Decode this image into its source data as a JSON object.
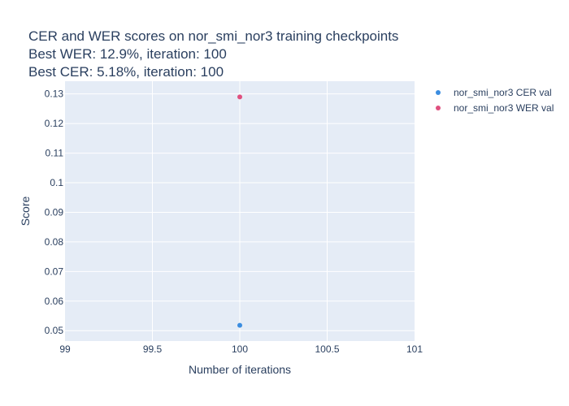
{
  "chart_data": {
    "type": "scatter",
    "title": {
      "lines": [
        "CER and WER scores on nor_smi_nor3 training checkpoints",
        "Best WER: 12.9%,  iteration: 100",
        "Best CER: 5.18%, iteration: 100"
      ]
    },
    "xlabel": "Number of iterations",
    "ylabel": "Score",
    "xlim": [
      99,
      101
    ],
    "ylim": [
      0.0465,
      0.1343
    ],
    "xticks": [
      99,
      99.5,
      100,
      100.5,
      101
    ],
    "xtick_labels": [
      "99",
      "99.5",
      "100",
      "100.5",
      "101"
    ],
    "yticks": [
      0.05,
      0.06,
      0.07,
      0.08,
      0.09,
      0.1,
      0.11,
      0.12,
      0.13
    ],
    "ytick_labels": [
      "0.05",
      "0.06",
      "0.07",
      "0.08",
      "0.09",
      "0.1",
      "0.11",
      "0.12",
      "0.13"
    ],
    "grid": true,
    "legend_position": "top-right",
    "series": [
      {
        "name": "nor_smi_nor3 CER val",
        "color": "#3b8de0",
        "x": [
          100
        ],
        "y": [
          0.0518
        ]
      },
      {
        "name": "nor_smi_nor3 WER val",
        "color": "#e0507f",
        "x": [
          100
        ],
        "y": [
          0.129
        ]
      }
    ],
    "plot_bgcolor": "#e5ecf6"
  }
}
